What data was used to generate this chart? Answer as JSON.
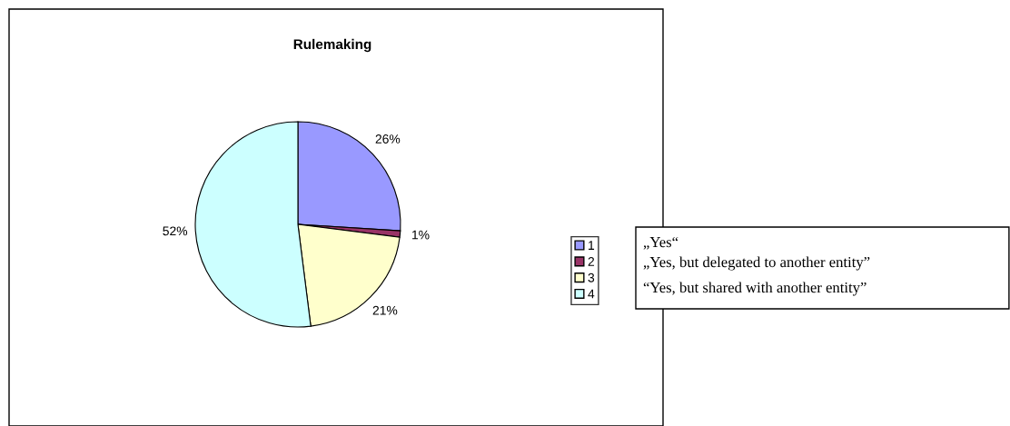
{
  "chart_data": {
    "type": "pie",
    "title": "Rulemaking",
    "categories": [
      "1",
      "2",
      "3",
      "4"
    ],
    "values": [
      26,
      1,
      21,
      52
    ],
    "colors": [
      "#9999ff",
      "#993366",
      "#ffffcc",
      "#ccffff"
    ],
    "value_labels": [
      "26%",
      "1%",
      "21%",
      "52%"
    ],
    "legend": "right",
    "annotations": [
      "„Yes“",
      "„Yes, but delegated to another entity”",
      "“Yes, but shared with another entity”"
    ]
  }
}
